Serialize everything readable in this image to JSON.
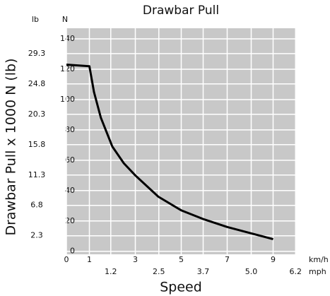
{
  "chart_data": {
    "type": "line",
    "title": "Drawbar Pull",
    "y_label": "Drawbar Pull x 1000 N (lb)",
    "x_label": "Speed",
    "y_unit": "N",
    "y2_unit": "lb",
    "x_unit": "km/h",
    "x2_unit": "mph",
    "x": [
      0,
      1,
      1.2,
      1.5,
      2,
      2.5,
      3,
      4,
      5,
      6,
      7,
      8,
      9
    ],
    "series": [
      {
        "name": "Drawbar Pull",
        "color": "#000000",
        "values": [
          123,
          122,
          105,
          88,
          69,
          58,
          50,
          36,
          27,
          21,
          16,
          12,
          8
        ]
      }
    ],
    "xlim": [
      0,
      10
    ],
    "xticks": [
      0,
      1,
      3,
      5,
      7,
      9
    ],
    "x2lim": [
      0,
      6.214
    ],
    "x2ticks": [
      1.2,
      2.5,
      3.7,
      {
        "value": 5.0,
        "label": "5.0"
      },
      6.2
    ],
    "ylim": [
      -2,
      147
    ],
    "yticks": [
      0,
      20,
      40,
      60,
      80,
      100,
      120,
      140
    ],
    "y2lim": [
      -0.45,
      33.05
    ],
    "y2ticks": [
      2.3,
      6.8,
      11.3,
      15.8,
      20.3,
      24.8,
      29.3
    ],
    "grid": true,
    "background": "#c8c8c8"
  }
}
